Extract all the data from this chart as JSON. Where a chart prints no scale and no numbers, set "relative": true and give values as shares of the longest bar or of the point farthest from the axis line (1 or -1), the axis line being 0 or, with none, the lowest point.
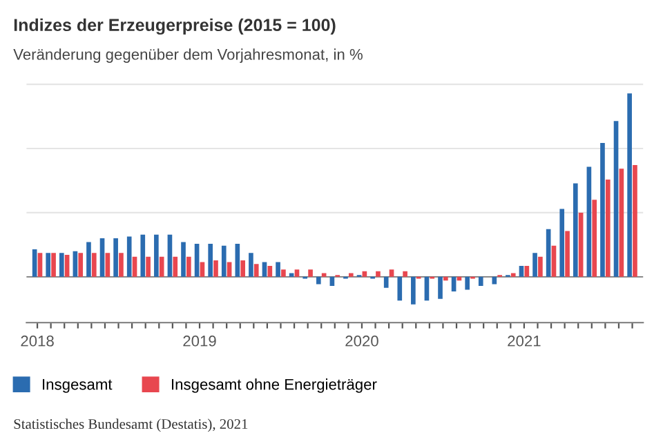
{
  "chart_data": {
    "type": "bar",
    "title": "Indizes der Erzeugerpreise (2015 = 100)",
    "subtitle": "Veränderung gegenüber dem Vorjahresmonat, in %",
    "categories": [
      "2018",
      null,
      null,
      null,
      null,
      null,
      null,
      null,
      null,
      null,
      null,
      null,
      "2019",
      null,
      null,
      null,
      null,
      null,
      null,
      null,
      null,
      null,
      null,
      null,
      "2020",
      null,
      null,
      null,
      null,
      null,
      null,
      null,
      null,
      null,
      null,
      null,
      "2021",
      null,
      null,
      null,
      null,
      null,
      null,
      null,
      null
    ],
    "relative": true,
    "grid": "y",
    "legend": "bottom left",
    "series": [
      {
        "name": "Insgesamt",
        "color": "#2b6cb0",
        "values": [
          0.15,
          0.13,
          0.13,
          0.14,
          0.19,
          0.21,
          0.21,
          0.22,
          0.23,
          0.23,
          0.23,
          0.19,
          0.18,
          0.18,
          0.17,
          0.18,
          0.13,
          0.08,
          0.08,
          0.02,
          -0.01,
          -0.04,
          -0.05,
          -0.01,
          0.01,
          -0.01,
          -0.06,
          -0.13,
          -0.15,
          -0.13,
          -0.12,
          -0.08,
          -0.07,
          -0.05,
          -0.04,
          0.01,
          0.06,
          0.13,
          0.26,
          0.37,
          0.51,
          0.6,
          0.73,
          0.85,
          1
        ]
      },
      {
        "name": "Insgesamt ohne Energieträger",
        "color": "#e8474f",
        "values": [
          0.13,
          0.13,
          0.12,
          0.13,
          0.13,
          0.13,
          0.13,
          0.11,
          0.11,
          0.11,
          0.11,
          0.11,
          0.08,
          0.09,
          0.08,
          0.09,
          0.07,
          0.06,
          0.04,
          0.04,
          0.04,
          0.02,
          0.01,
          0.02,
          0.03,
          0.03,
          0.04,
          0.03,
          -0.01,
          -0.01,
          -0.02,
          -0.02,
          -0.01,
          0,
          0.01,
          0.02,
          0.06,
          0.11,
          0.17,
          0.25,
          0.35,
          0.42,
          0.53,
          0.59,
          0.61
        ]
      }
    ],
    "annotations": [
      "Statistisches Bundesamt (Destatis), 2021"
    ]
  }
}
